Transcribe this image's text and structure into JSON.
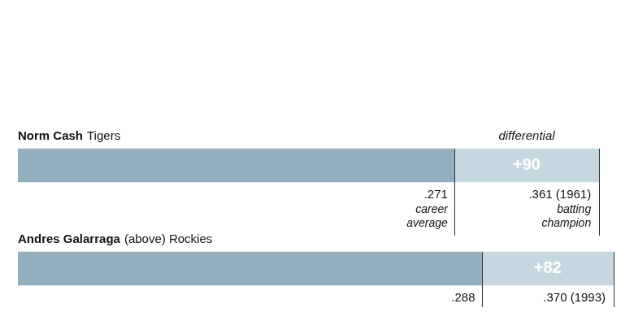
{
  "chart_data": {
    "type": "bar",
    "orientation": "horizontal",
    "stacked": true,
    "categories": [
      "Norm Cash",
      "Andres Galarraga"
    ],
    "teams": [
      "Tigers",
      "(above) Rockies"
    ],
    "series": [
      {
        "name": "career average",
        "color": "#93afbe",
        "values": [
          0.271,
          0.288
        ],
        "value_labels": [
          ".271",
          ".288"
        ]
      },
      {
        "name": "differential",
        "color": "#c6d7e0",
        "values": [
          0.09,
          0.082
        ],
        "value_labels": [
          "+90",
          "+82"
        ]
      }
    ],
    "totals": [
      0.361,
      0.37
    ],
    "total_labels": [
      ".361 (1961)",
      ".370 (1993)"
    ],
    "total_note": "batting champion",
    "xlim": [
      0,
      0.37
    ],
    "grid": false,
    "tick_labels": false,
    "data_labels": true
  }
}
